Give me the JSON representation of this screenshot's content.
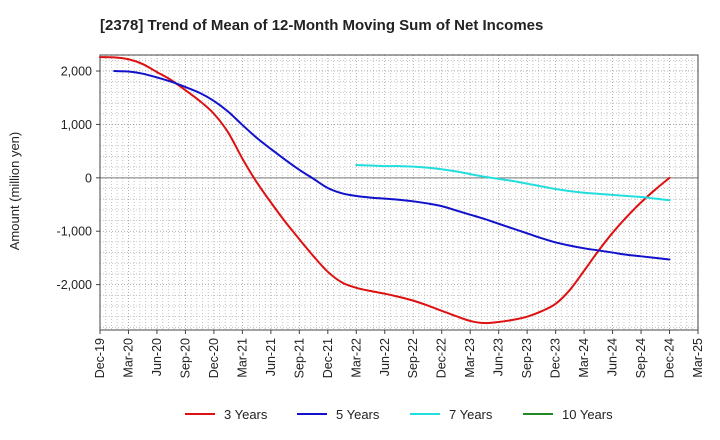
{
  "chart_data": {
    "type": "line",
    "title": "[2378]  Trend of Mean of 12-Month Moving Sum of Net Incomes",
    "xlabel": "",
    "ylabel": "Amount (million yen)",
    "ylim": [
      -2850,
      2300
    ],
    "yticks": [
      2000,
      1000,
      0,
      -1000,
      -2000
    ],
    "ytick_labels": [
      "2,000",
      "1,000",
      "0",
      "-1,000",
      "-2,000"
    ],
    "xlim": [
      0,
      21
    ],
    "categories": [
      "Dec-19",
      "Mar-20",
      "Jun-20",
      "Sep-20",
      "Dec-20",
      "Mar-21",
      "Jun-21",
      "Sep-21",
      "Dec-21",
      "Mar-22",
      "Jun-22",
      "Sep-22",
      "Dec-22",
      "Mar-23",
      "Jun-23",
      "Sep-23",
      "Dec-23",
      "Mar-24",
      "Jun-24",
      "Sep-24",
      "Dec-24",
      "Mar-25"
    ],
    "grid": true,
    "legend_position": "bottom",
    "series": [
      {
        "name": "3 Years",
        "color": "#dd1111",
        "x": [
          0,
          0.5,
          1,
          1.5,
          2,
          2.5,
          3,
          3.5,
          4,
          4.5,
          5,
          5.5,
          6,
          6.5,
          7,
          7.5,
          8,
          8.5,
          9,
          9.5,
          10,
          10.5,
          11,
          11.5,
          12,
          12.5,
          13,
          13.5,
          14,
          14.5,
          15,
          15.5,
          16,
          16.5,
          17,
          17.5,
          18,
          18.5,
          19,
          19.5,
          20
        ],
        "values": [
          2260,
          2255,
          2220,
          2130,
          1980,
          1830,
          1640,
          1440,
          1200,
          850,
          360,
          -80,
          -460,
          -820,
          -1150,
          -1470,
          -1760,
          -1960,
          -2060,
          -2120,
          -2170,
          -2230,
          -2300,
          -2390,
          -2490,
          -2590,
          -2680,
          -2720,
          -2700,
          -2660,
          -2600,
          -2500,
          -2360,
          -2100,
          -1740,
          -1370,
          -1030,
          -730,
          -460,
          -220,
          0
        ]
      },
      {
        "name": "5 Years",
        "color": "#1111cc",
        "x": [
          0.5,
          1,
          1.5,
          2,
          2.5,
          3,
          3.5,
          4,
          4.5,
          5,
          5.5,
          6,
          6.5,
          7,
          7.5,
          8,
          8.5,
          9,
          9.5,
          10,
          10.5,
          11,
          11.5,
          12,
          12.5,
          13,
          13.5,
          14,
          14.5,
          15,
          15.5,
          16,
          16.5,
          17,
          17.5,
          18,
          18.5,
          19,
          19.5,
          20
        ],
        "values": [
          2000,
          1990,
          1950,
          1880,
          1800,
          1700,
          1590,
          1440,
          1240,
          990,
          750,
          540,
          340,
          150,
          -20,
          -190,
          -290,
          -340,
          -370,
          -390,
          -410,
          -440,
          -480,
          -530,
          -610,
          -690,
          -770,
          -860,
          -950,
          -1040,
          -1130,
          -1210,
          -1270,
          -1320,
          -1360,
          -1400,
          -1440,
          -1470,
          -1500,
          -1530
        ]
      },
      {
        "name": "7 Years",
        "color": "#22dddd",
        "x": [
          9,
          9.5,
          10,
          10.5,
          11,
          11.5,
          12,
          12.5,
          13,
          13.5,
          14,
          14.5,
          15,
          15.5,
          16,
          16.5,
          17,
          17.5,
          18,
          18.5,
          19,
          19.5,
          20
        ],
        "values": [
          240,
          230,
          220,
          220,
          210,
          190,
          160,
          120,
          70,
          20,
          -20,
          -60,
          -110,
          -160,
          -210,
          -250,
          -280,
          -300,
          -320,
          -340,
          -360,
          -390,
          -420
        ]
      },
      {
        "name": "10 Years",
        "color": "#228822",
        "x": [],
        "values": []
      }
    ]
  }
}
